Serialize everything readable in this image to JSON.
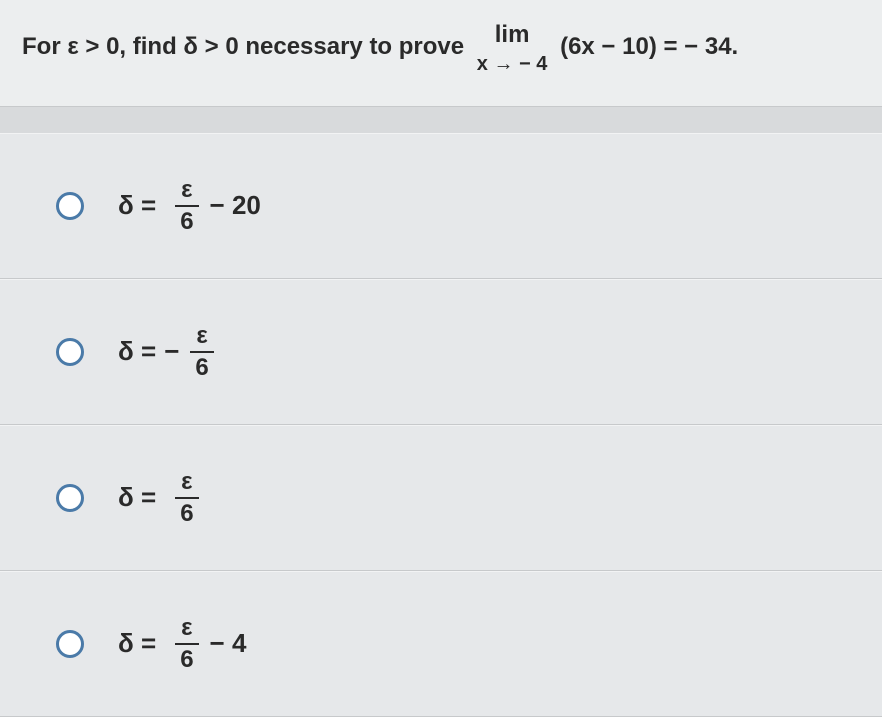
{
  "colors": {
    "page_bg": "#d8dadc",
    "panel_bg": "#e6e8ea",
    "question_bg": "#eceeef",
    "text": "#2a2a2a",
    "radio_border": "#4a7aa8",
    "divider": "#c7c9cb"
  },
  "typography": {
    "question_fontsize": 24,
    "option_fontsize": 26,
    "font_weight": 600,
    "font_family": "Arial"
  },
  "question": {
    "prefix": "For ",
    "eps_cond": "ε > 0",
    "mid": ", find ",
    "delta_cond": "δ > 0",
    "mid2": " necessary to prove ",
    "lim_top": "lim",
    "lim_bot": "x → − 4",
    "expr": "(6x − 10) = − 34."
  },
  "options": [
    {
      "lhs": "δ =",
      "num": "ε",
      "den": "6",
      "tail": "− 20",
      "neg": ""
    },
    {
      "lhs": "δ =",
      "num": "ε",
      "den": "6",
      "tail": "",
      "neg": "−"
    },
    {
      "lhs": "δ =",
      "num": "ε",
      "den": "6",
      "tail": "",
      "neg": ""
    },
    {
      "lhs": "δ =",
      "num": "ε",
      "den": "6",
      "tail": "− 4",
      "neg": ""
    }
  ]
}
